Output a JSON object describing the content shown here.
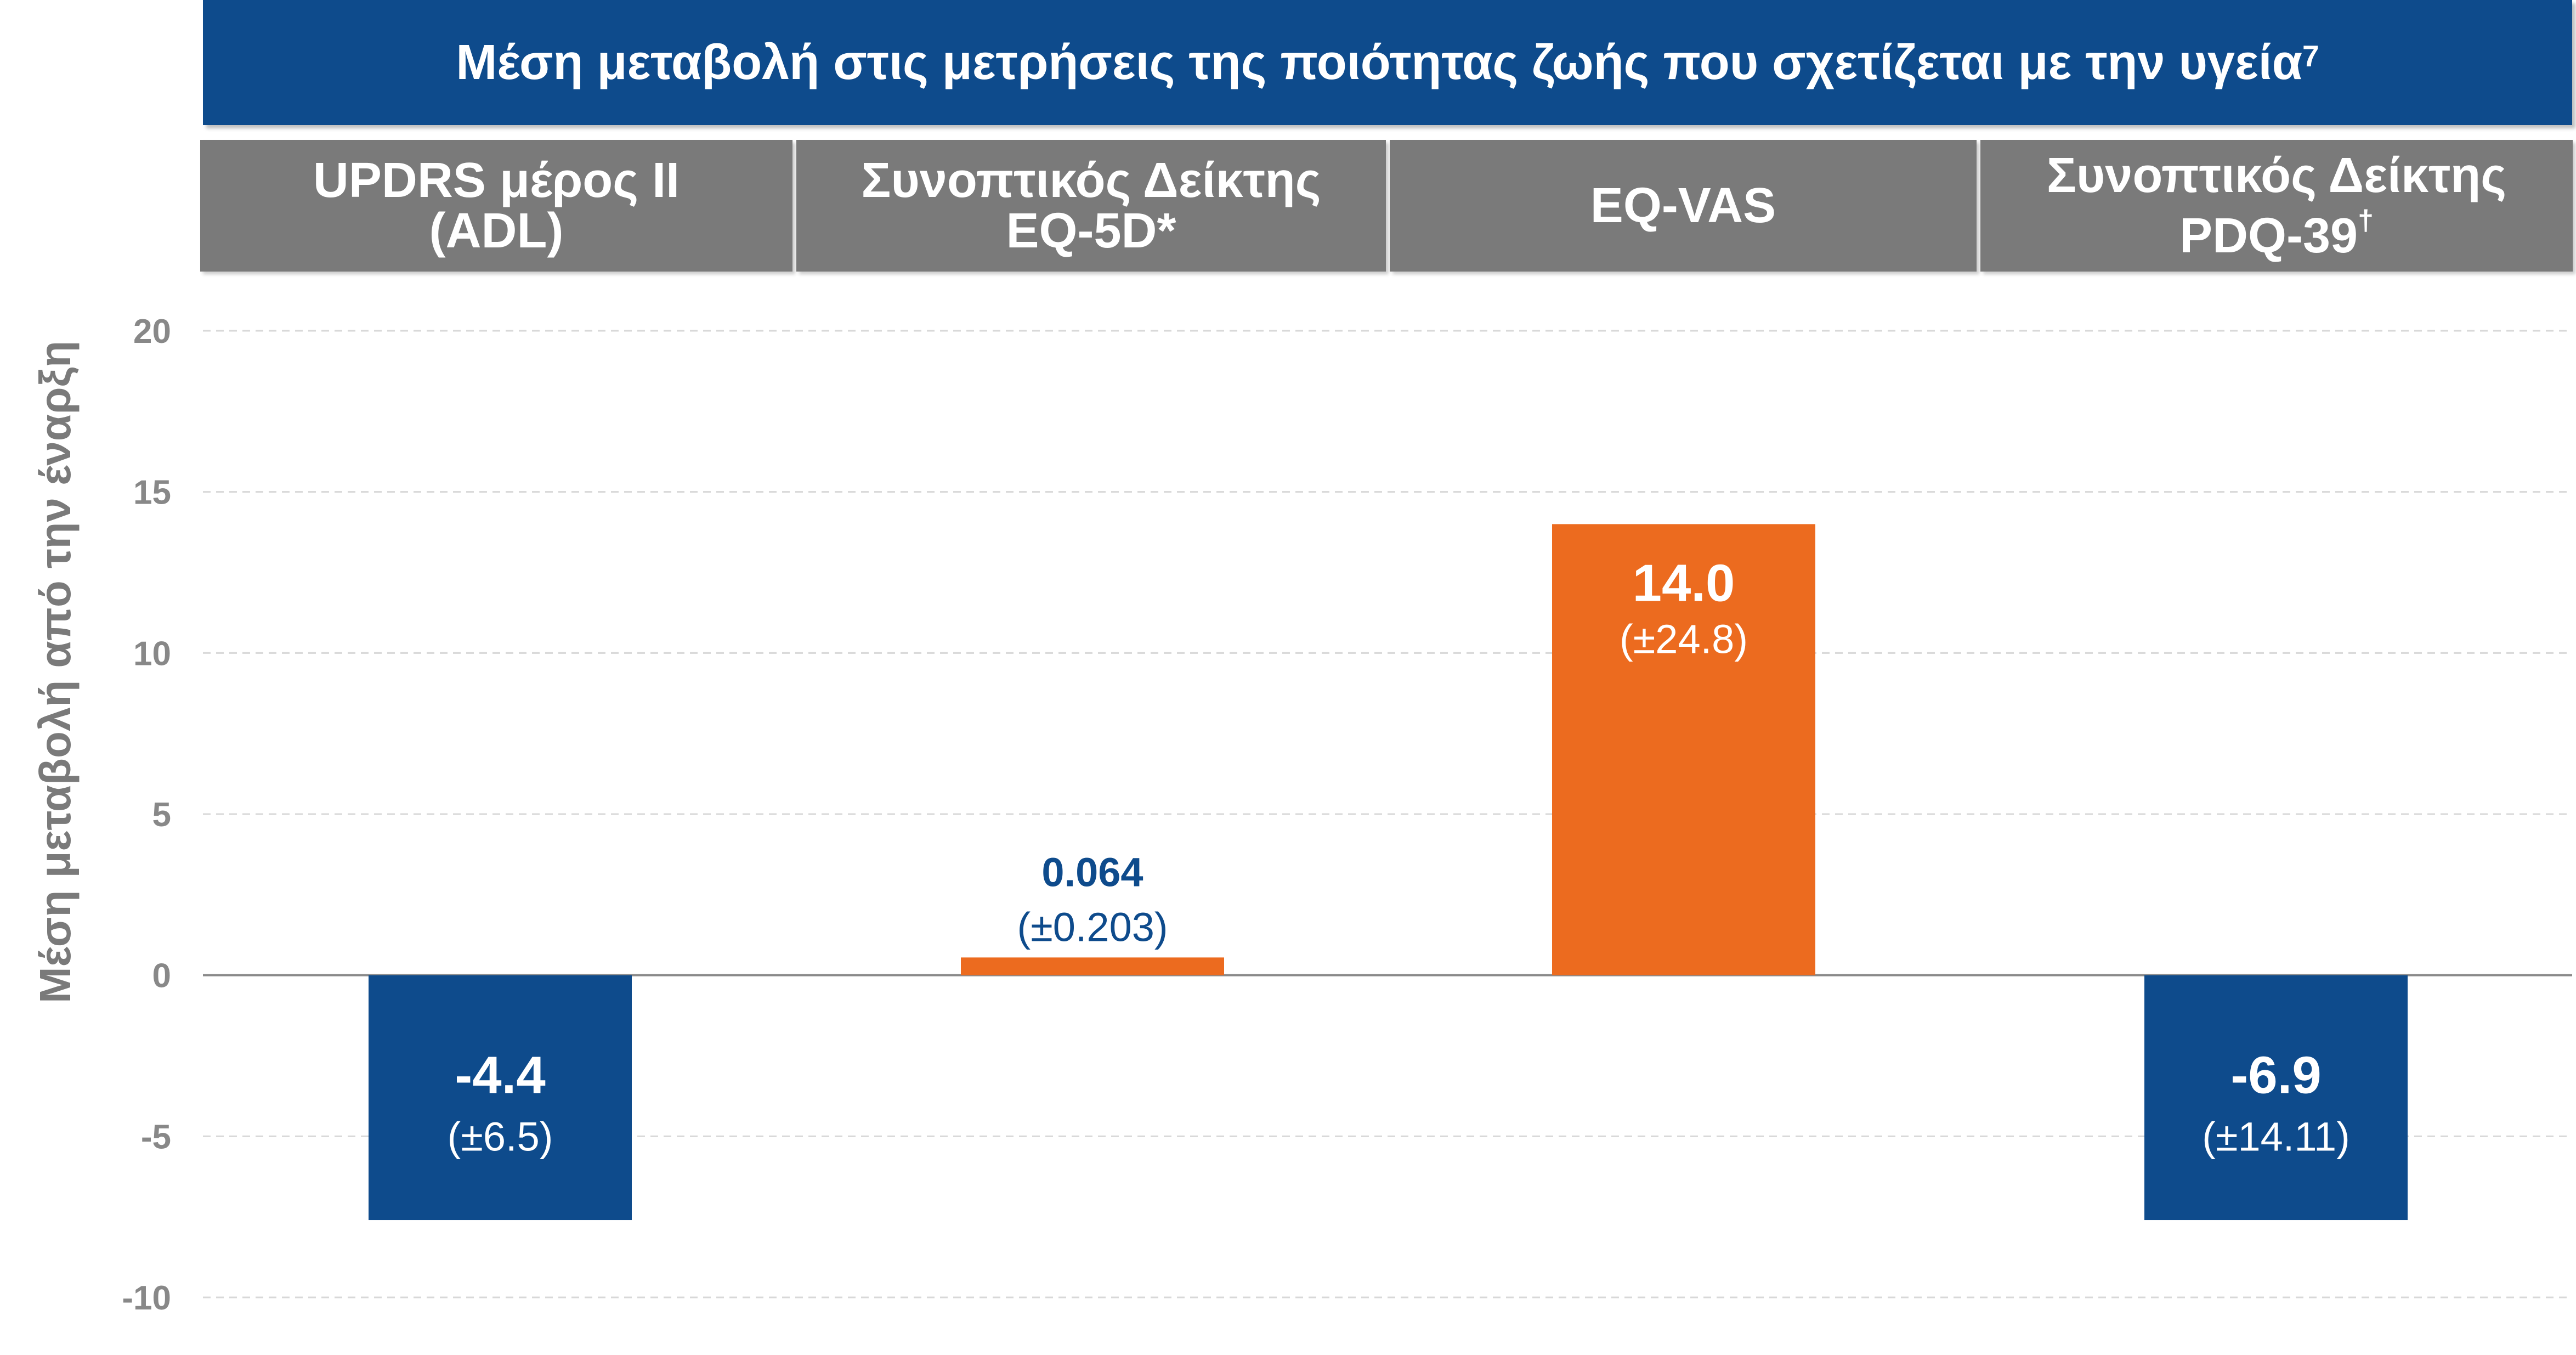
{
  "title": "Μέση μεταβολή στις μετρήσεις της ποιότητας ζωής που σχετίζεται με την υγεία",
  "title_sup": "7",
  "headers": [
    {
      "line1": "UPDRS μέρος II",
      "line2": "(ADL)",
      "sup": ""
    },
    {
      "line1": "Συνοπτικός Δείκτης",
      "line2": "EQ-5D*",
      "sup": ""
    },
    {
      "line1": "EQ-VAS",
      "line2": "",
      "sup": ""
    },
    {
      "line1": "Συνοπτικός Δείκτης",
      "line2": "PDQ-39",
      "sup": "†"
    }
  ],
  "colors": {
    "blue": "#0e4b8c",
    "orange": "#ec6b1f",
    "header_gray": "#7a7a7a",
    "tick": "#888888",
    "ylabel": "#7a7a7a"
  },
  "chart_data": {
    "type": "bar",
    "title": "Μέση μεταβολή στις μετρήσεις της ποιότητας ζωής που σχετίζεται με την υγεία",
    "ylabel": "Μέση μεταβολή από την έναρξη",
    "xlabel": "",
    "ylim": [
      -10,
      20
    ],
    "yticks": [
      20,
      15,
      10,
      5,
      0,
      -5,
      -10
    ],
    "grid": true,
    "categories": [
      "UPDRS μέρος II (ADL)",
      "Συνοπτικός Δείκτης EQ-5D*",
      "EQ-VAS",
      "Συνοπτικός Δείκτης PDQ-39†"
    ],
    "values": [
      -4.4,
      0.064,
      14.0,
      -6.9
    ],
    "bar_extent": [
      -7.6,
      0.55,
      14.0,
      -7.6
    ],
    "labels": [
      "-4.4",
      "0.064",
      "14.0",
      "-6.9"
    ],
    "errors": [
      "(±6.5)",
      "(±0.203)",
      "(±24.8)",
      "(±14.11)"
    ],
    "bar_colors": [
      "#0e4b8c",
      "#ec6b1f",
      "#ec6b1f",
      "#0e4b8c"
    ]
  }
}
